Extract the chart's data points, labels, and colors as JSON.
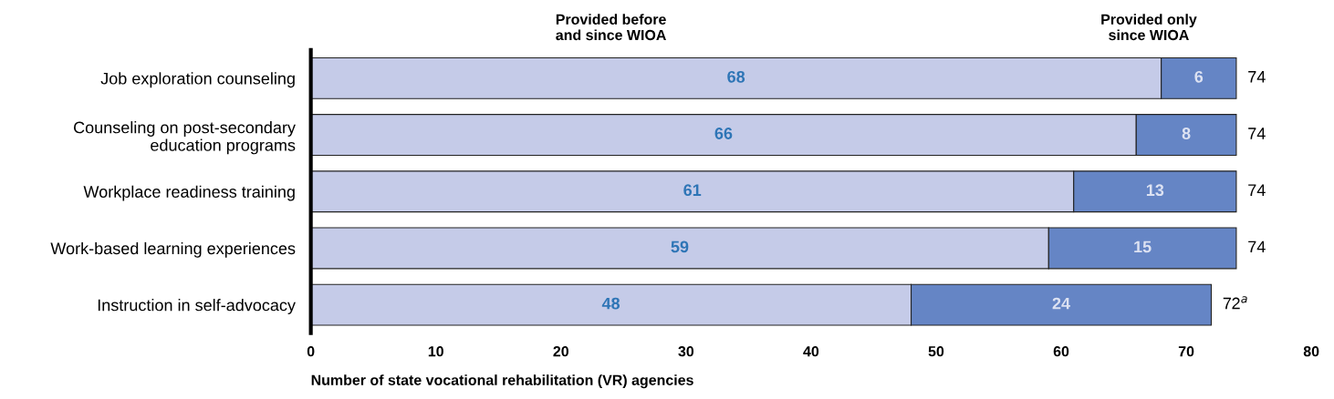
{
  "chart_data": {
    "type": "bar",
    "orientation": "horizontal",
    "stacked": true,
    "categories": [
      "Job exploration counseling",
      "Counseling on post-secondary\neducation programs",
      "Workplace readiness training",
      "Work-based learning experiences",
      "Instruction in self-advocacy"
    ],
    "series": [
      {
        "name": "Provided before\nand since WIOA",
        "color": "#c5cbe8",
        "values": [
          68,
          66,
          61,
          59,
          48
        ]
      },
      {
        "name": "Provided only\nsince WIOA",
        "color": "#6585c5",
        "values": [
          6,
          8,
          13,
          15,
          24
        ]
      }
    ],
    "totals": [
      "74",
      "74",
      "74",
      "74",
      "72$^{a}$"
    ],
    "data_labels": true,
    "xlim": [
      0,
      80
    ],
    "xticks": [
      0,
      10,
      20,
      30,
      40,
      50,
      60,
      70,
      80
    ],
    "xlabel": "Number of state vocational rehabilitation (VR) agencies",
    "grid": false
  }
}
